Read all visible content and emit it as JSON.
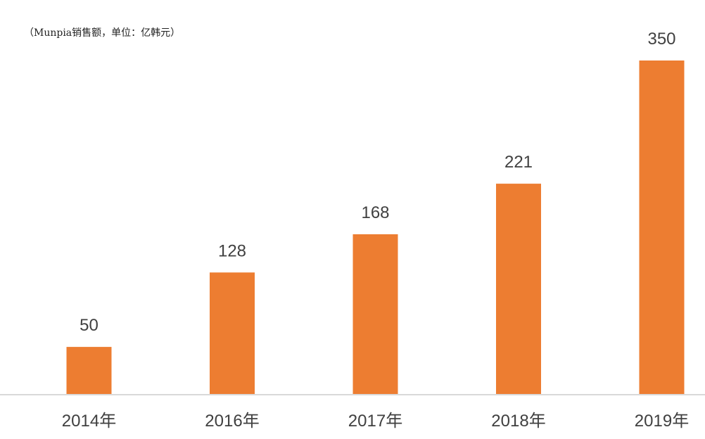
{
  "chart_data": {
    "type": "bar",
    "title": "（Munpia销售额，单位：亿韩元）",
    "categories": [
      "2014年",
      "2016年",
      "2017年",
      "2018年",
      "2019年"
    ],
    "values": [
      50,
      128,
      168,
      221,
      350
    ],
    "data_labels": [
      "50",
      "128",
      "168",
      "221",
      "350"
    ],
    "xlabel": "",
    "ylabel": "",
    "ylim": [
      0,
      350
    ],
    "grid": false,
    "legend": "none",
    "bar_color": "#ED7D31",
    "axis_color": "#D9D9D9",
    "label_color": "#404040"
  }
}
